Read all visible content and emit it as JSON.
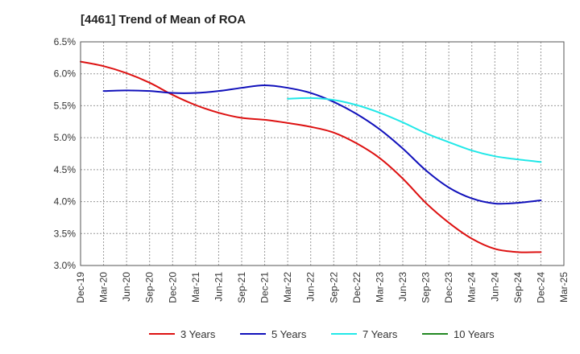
{
  "chart_data": {
    "type": "line",
    "title": "[4461]  Trend of Mean of ROA",
    "xlabel": "",
    "ylabel": "",
    "categories": [
      "Dec-19",
      "Mar-20",
      "Jun-20",
      "Sep-20",
      "Dec-20",
      "Mar-21",
      "Jun-21",
      "Sep-21",
      "Dec-21",
      "Mar-22",
      "Jun-22",
      "Sep-22",
      "Dec-22",
      "Mar-23",
      "Jun-23",
      "Sep-23",
      "Dec-23",
      "Mar-24",
      "Jun-24",
      "Sep-24",
      "Dec-24",
      "Mar-25"
    ],
    "ylim": [
      3.0,
      6.5
    ],
    "yticks": [
      3.0,
      3.5,
      4.0,
      4.5,
      5.0,
      5.5,
      6.0,
      6.5
    ],
    "ytick_labels": [
      "3.0%",
      "3.5%",
      "4.0%",
      "4.5%",
      "5.0%",
      "5.5%",
      "6.0%",
      "6.5%"
    ],
    "grid": true,
    "series": [
      {
        "name": "3 Years",
        "color": "#dd1111",
        "values": [
          6.19,
          6.12,
          6.01,
          5.86,
          5.67,
          5.51,
          5.39,
          5.31,
          5.28,
          5.23,
          5.17,
          5.08,
          4.91,
          4.68,
          4.36,
          3.98,
          3.67,
          3.42,
          3.26,
          3.21,
          3.21,
          null
        ]
      },
      {
        "name": "5 Years",
        "color": "#1111bb",
        "values": [
          null,
          5.73,
          5.74,
          5.73,
          5.7,
          5.7,
          5.73,
          5.78,
          5.82,
          5.78,
          5.7,
          5.56,
          5.37,
          5.13,
          4.83,
          4.49,
          4.22,
          4.05,
          3.97,
          3.98,
          4.02,
          null
        ]
      },
      {
        "name": "7 Years",
        "color": "#22e8e8",
        "values": [
          null,
          null,
          null,
          null,
          null,
          null,
          null,
          null,
          null,
          5.61,
          5.62,
          5.59,
          5.51,
          5.39,
          5.24,
          5.07,
          4.93,
          4.8,
          4.71,
          4.66,
          4.62,
          null
        ]
      },
      {
        "name": "10 Years",
        "color": "#228822",
        "values": [
          null,
          null,
          null,
          null,
          null,
          null,
          null,
          null,
          null,
          null,
          null,
          null,
          null,
          null,
          null,
          null,
          null,
          null,
          null,
          null,
          null,
          null
        ]
      }
    ]
  }
}
